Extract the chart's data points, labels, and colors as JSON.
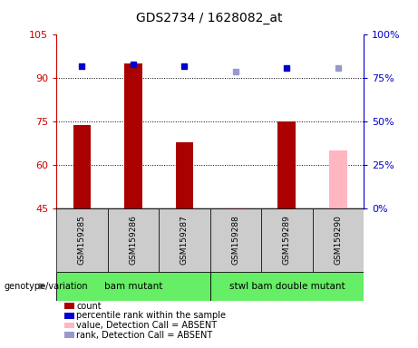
{
  "title": "GDS2734 / 1628082_at",
  "samples": [
    "GSM159285",
    "GSM159286",
    "GSM159287",
    "GSM159288",
    "GSM159289",
    "GSM159290"
  ],
  "count_values": [
    74,
    95,
    68,
    45.5,
    75,
    65
  ],
  "percentile_values": [
    82,
    83,
    82,
    79,
    81,
    81
  ],
  "absent_mask": [
    false,
    false,
    false,
    true,
    false,
    true
  ],
  "ylim_left": [
    45,
    105
  ],
  "ylim_right": [
    0,
    100
  ],
  "yticks_left": [
    45,
    60,
    75,
    90,
    105
  ],
  "yticks_right": [
    0,
    25,
    50,
    75,
    100
  ],
  "group_configs": [
    {
      "indices": [
        0,
        1,
        2
      ],
      "label": "bam mutant",
      "color": "#66EE66"
    },
    {
      "indices": [
        3,
        4,
        5
      ],
      "label": "stwl bam double mutant",
      "color": "#66EE66"
    }
  ],
  "bar_color_present": "#AA0000",
  "bar_color_absent": "#FFB6C1",
  "dot_color_present": "#0000CC",
  "dot_color_absent": "#9999CC",
  "bar_width": 0.35,
  "legend_items": [
    {
      "label": "count",
      "color": "#AA0000"
    },
    {
      "label": "percentile rank within the sample",
      "color": "#0000CC"
    },
    {
      "label": "value, Detection Call = ABSENT",
      "color": "#FFB6C1"
    },
    {
      "label": "rank, Detection Call = ABSENT",
      "color": "#9999CC"
    }
  ]
}
